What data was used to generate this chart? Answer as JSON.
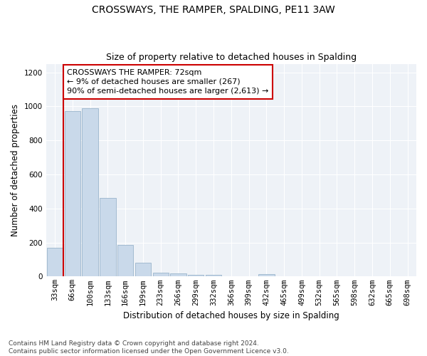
{
  "title": "CROSSWAYS, THE RAMPER, SPALDING, PE11 3AW",
  "subtitle": "Size of property relative to detached houses in Spalding",
  "xlabel": "Distribution of detached houses by size in Spalding",
  "ylabel": "Number of detached properties",
  "categories": [
    "33sqm",
    "66sqm",
    "100sqm",
    "133sqm",
    "166sqm",
    "199sqm",
    "233sqm",
    "266sqm",
    "299sqm",
    "332sqm",
    "366sqm",
    "399sqm",
    "432sqm",
    "465sqm",
    "499sqm",
    "532sqm",
    "565sqm",
    "598sqm",
    "632sqm",
    "665sqm",
    "698sqm"
  ],
  "values": [
    170,
    970,
    990,
    460,
    185,
    80,
    22,
    17,
    11,
    8,
    0,
    0,
    15,
    0,
    0,
    0,
    0,
    0,
    0,
    0,
    0
  ],
  "bar_color": "#c9d9ea",
  "bar_edge_color": "#9ab5cc",
  "vline_color": "#cc0000",
  "annotation_text": "CROSSWAYS THE RAMPER: 72sqm\n← 9% of detached houses are smaller (267)\n90% of semi-detached houses are larger (2,613) →",
  "annotation_box_color": "#ffffff",
  "annotation_box_edge_color": "#cc0000",
  "ylim": [
    0,
    1250
  ],
  "yticks": [
    0,
    200,
    400,
    600,
    800,
    1000,
    1200
  ],
  "footnote": "Contains HM Land Registry data © Crown copyright and database right 2024.\nContains public sector information licensed under the Open Government Licence v3.0.",
  "background_color": "#eef2f7",
  "title_fontsize": 10,
  "subtitle_fontsize": 9,
  "axis_label_fontsize": 8.5,
  "tick_fontsize": 7.5,
  "annotation_fontsize": 8,
  "footnote_fontsize": 6.5
}
